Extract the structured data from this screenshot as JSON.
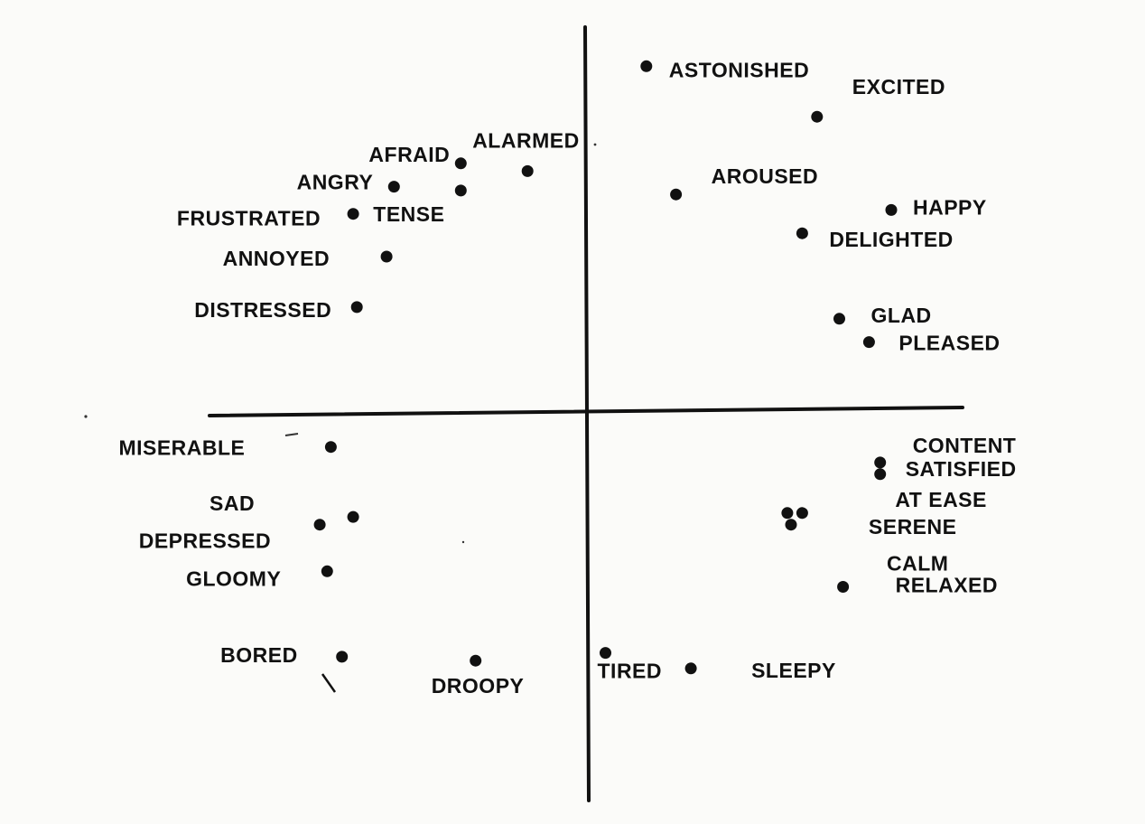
{
  "chart_data": {
    "type": "scatter",
    "title": "",
    "xlabel": "",
    "ylabel": "",
    "xlim": [
      -1,
      1
    ],
    "ylim": [
      -1,
      1
    ],
    "grid": false,
    "legend": "none",
    "colors": {
      "marker": "#111111",
      "axis": "#111111",
      "background": "#fbfbf9"
    },
    "points": [
      {
        "label": "ASTONISHED",
        "x": 0.16,
        "y": 0.89
      },
      {
        "label": "EXCITED",
        "x": 0.62,
        "y": 0.76
      },
      {
        "label": "ALARMED",
        "x": -0.16,
        "y": 0.62
      },
      {
        "label": "AFRAID",
        "x": -0.34,
        "y": 0.64
      },
      {
        "label": "AROUSED",
        "x": 0.24,
        "y": 0.56
      },
      {
        "label": "ANGRY",
        "x": -0.52,
        "y": 0.58
      },
      {
        "label": "TENSE",
        "x": -0.34,
        "y": 0.57
      },
      {
        "label": "HAPPY",
        "x": 0.82,
        "y": 0.52
      },
      {
        "label": "FRUSTRATED",
        "x": -0.63,
        "y": 0.51
      },
      {
        "label": "DELIGHTED",
        "x": 0.58,
        "y": 0.46
      },
      {
        "label": "ANNOYED",
        "x": -0.54,
        "y": 0.4
      },
      {
        "label": "DISTRESSED",
        "x": -0.62,
        "y": 0.27
      },
      {
        "label": "GLAD",
        "x": 0.68,
        "y": 0.24
      },
      {
        "label": "PLEASED",
        "x": 0.76,
        "y": 0.18
      },
      {
        "label": "MISERABLE",
        "x": -0.69,
        "y": -0.09
      },
      {
        "label": "CONTENT",
        "x": 0.79,
        "y": -0.13
      },
      {
        "label": "SATISFIED",
        "x": 0.79,
        "y": -0.16
      },
      {
        "label": "AT EASE",
        "x": 0.58,
        "y": -0.26
      },
      {
        "label": "SERENE",
        "x": 0.54,
        "y": -0.26
      },
      {
        "label": "CALM",
        "x": 0.55,
        "y": -0.29
      },
      {
        "label": "SAD",
        "x": -0.63,
        "y": -0.27
      },
      {
        "label": "DEPRESSED",
        "x": -0.72,
        "y": -0.29
      },
      {
        "label": "GLOOMY",
        "x": -0.7,
        "y": -0.41
      },
      {
        "label": "RELAXED",
        "x": 0.69,
        "y": -0.45
      },
      {
        "label": "BORED",
        "x": -0.66,
        "y": -0.63
      },
      {
        "label": "DROOPY",
        "x": -0.3,
        "y": -0.64
      },
      {
        "label": "TIRED",
        "x": 0.05,
        "y": -0.62
      },
      {
        "label": "SLEEPY",
        "x": 0.28,
        "y": -0.66
      }
    ]
  }
}
